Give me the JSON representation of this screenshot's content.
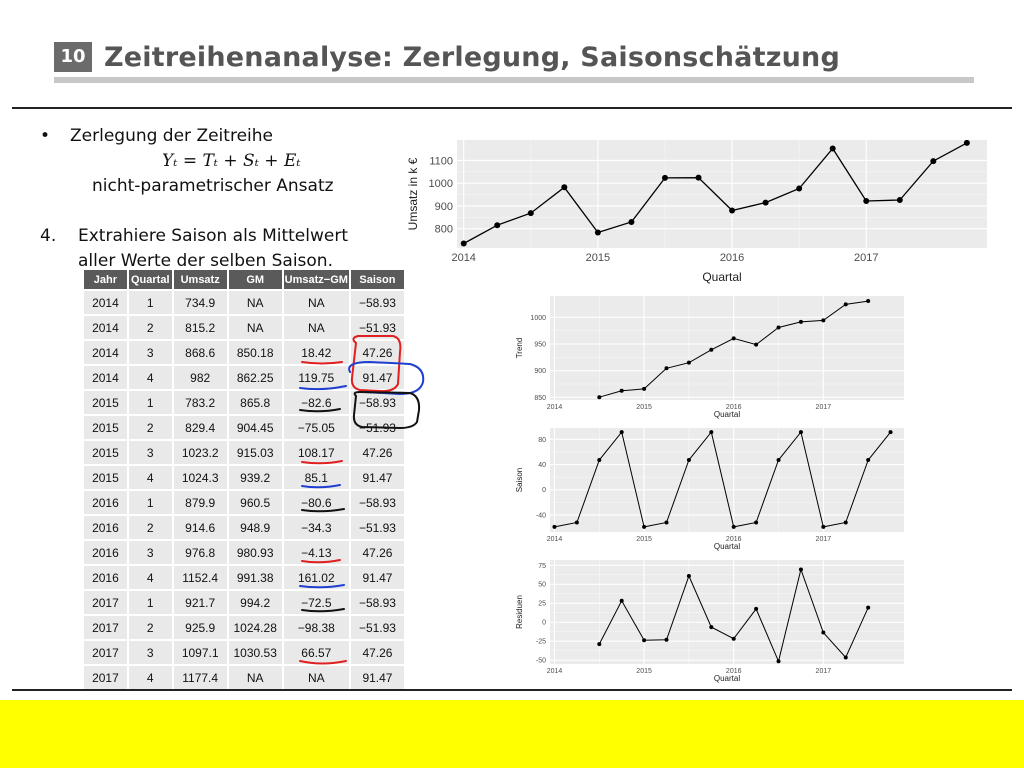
{
  "slide": {
    "number": "10",
    "title": "Zeitreihenanalyse: Zerlegung, Saisonschätzung"
  },
  "content": {
    "bullet": "•",
    "bullet_text": "Zerlegung der Zeitreihe",
    "formula": "Yₜ = Tₜ + Sₜ  + Eₜ",
    "note": "nicht-parametrischer Ansatz",
    "step_number": "4.",
    "step_text_line1": "Extrahiere Saison als Mittelwert",
    "step_text_line2": "aller Werte der selben Saison."
  },
  "table": {
    "headers": [
      "Jahr",
      "Quartal",
      "Umsatz",
      "GM",
      "Umsatz−GM",
      "Saison"
    ],
    "rows": [
      [
        "2014",
        "1",
        "734.9",
        "NA",
        "NA",
        "−58.93"
      ],
      [
        "2014",
        "2",
        "815.2",
        "NA",
        "NA",
        "−51.93"
      ],
      [
        "2014",
        "3",
        "868.6",
        "850.18",
        "18.42",
        "47.26"
      ],
      [
        "2014",
        "4",
        "982",
        "862.25",
        "119.75",
        "91.47"
      ],
      [
        "2015",
        "1",
        "783.2",
        "865.8",
        "−82.6",
        "−58.93"
      ],
      [
        "2015",
        "2",
        "829.4",
        "904.45",
        "−75.05",
        "−51.93"
      ],
      [
        "2015",
        "3",
        "1023.2",
        "915.03",
        "108.17",
        "47.26"
      ],
      [
        "2015",
        "4",
        "1024.3",
        "939.2",
        "85.1",
        "91.47"
      ],
      [
        "2016",
        "1",
        "879.9",
        "960.5",
        "−80.6",
        "−58.93"
      ],
      [
        "2016",
        "2",
        "914.6",
        "948.9",
        "−34.3",
        "−51.93"
      ],
      [
        "2016",
        "3",
        "976.8",
        "980.93",
        "−4.13",
        "47.26"
      ],
      [
        "2016",
        "4",
        "1152.4",
        "991.38",
        "161.02",
        "91.47"
      ],
      [
        "2017",
        "1",
        "921.7",
        "994.2",
        "−72.5",
        "−58.93"
      ],
      [
        "2017",
        "2",
        "925.9",
        "1024.28",
        "−98.38",
        "−51.93"
      ],
      [
        "2017",
        "3",
        "1097.1",
        "1030.53",
        "66.57",
        "47.26"
      ],
      [
        "2017",
        "4",
        "1177.4",
        "NA",
        "NA",
        "91.47"
      ]
    ],
    "annotation_colors": {
      "red": "#e02020",
      "blue": "#1f3fd0",
      "black": "#111111"
    }
  },
  "chart_data": [
    {
      "type": "line",
      "x": [
        2014.0,
        2014.25,
        2014.5,
        2014.75,
        2015.0,
        2015.25,
        2015.5,
        2015.75,
        2016.0,
        2016.25,
        2016.5,
        2016.75,
        2017.0,
        2017.25,
        2017.5,
        2017.75
      ],
      "y": [
        734.9,
        815.2,
        868.6,
        982,
        783.2,
        829.4,
        1023.2,
        1024.3,
        879.9,
        914.6,
        976.8,
        1152.4,
        921.7,
        925.9,
        1097.1,
        1177.4
      ],
      "xlabel": "Quartal",
      "ylabel": "Umsatz in k €",
      "xticks": [
        "2014",
        "2015",
        "2016",
        "2017"
      ],
      "yticks": [
        "800",
        "900",
        "1000",
        "1100"
      ],
      "xlim": [
        2013.95,
        2017.9
      ],
      "ylim": [
        715,
        1190
      ],
      "grid": true
    },
    {
      "type": "line",
      "x": [
        2014.5,
        2014.75,
        2015.0,
        2015.25,
        2015.5,
        2015.75,
        2016.0,
        2016.25,
        2016.5,
        2016.75,
        2017.0,
        2017.25,
        2017.5
      ],
      "y": [
        850.18,
        862.25,
        865.8,
        904.45,
        915.03,
        939.2,
        960.5,
        948.9,
        980.93,
        991.38,
        994.2,
        1024.28,
        1030.53
      ],
      "xlabel": "Quartal",
      "ylabel": "Trend",
      "xticks": [
        "2014",
        "2015",
        "2016",
        "2017"
      ],
      "yticks": [
        "850",
        "900",
        "950",
        "1000"
      ],
      "xlim": [
        2013.95,
        2017.9
      ],
      "ylim": [
        845,
        1040
      ],
      "grid": true
    },
    {
      "type": "line",
      "x": [
        2014.0,
        2014.25,
        2014.5,
        2014.75,
        2015.0,
        2015.25,
        2015.5,
        2015.75,
        2016.0,
        2016.25,
        2016.5,
        2016.75,
        2017.0,
        2017.25,
        2017.5,
        2017.75
      ],
      "y": [
        -58.93,
        -51.93,
        47.26,
        91.47,
        -58.93,
        -51.93,
        47.26,
        91.47,
        -58.93,
        -51.93,
        47.26,
        91.47,
        -58.93,
        -51.93,
        47.26,
        91.47
      ],
      "xlabel": "Quartal",
      "ylabel": "Saison",
      "xticks": [
        "2014",
        "2015",
        "2016",
        "2017"
      ],
      "yticks": [
        "-40",
        "0",
        "40",
        "80"
      ],
      "xlim": [
        2013.95,
        2017.9
      ],
      "ylim": [
        -67,
        98
      ],
      "grid": true
    },
    {
      "type": "line",
      "x": [
        2014.5,
        2014.75,
        2015.0,
        2015.25,
        2015.5,
        2015.75,
        2016.0,
        2016.25,
        2016.5,
        2016.75,
        2017.0,
        2017.25,
        2017.5
      ],
      "y": [
        -28.84,
        28.28,
        -23.67,
        -23.12,
        60.91,
        -6.37,
        -21.67,
        17.63,
        -51.39,
        69.55,
        -13.57,
        -46.45,
        19.31
      ],
      "xlabel": "Quartal",
      "ylabel": "Residuen",
      "xticks": [
        "2014",
        "2015",
        "2016",
        "2017"
      ],
      "yticks": [
        "-50",
        "-25",
        "0",
        "25",
        "50",
        "75"
      ],
      "xlim": [
        2013.95,
        2017.9
      ],
      "ylim": [
        -55,
        82
      ],
      "grid": true
    }
  ]
}
